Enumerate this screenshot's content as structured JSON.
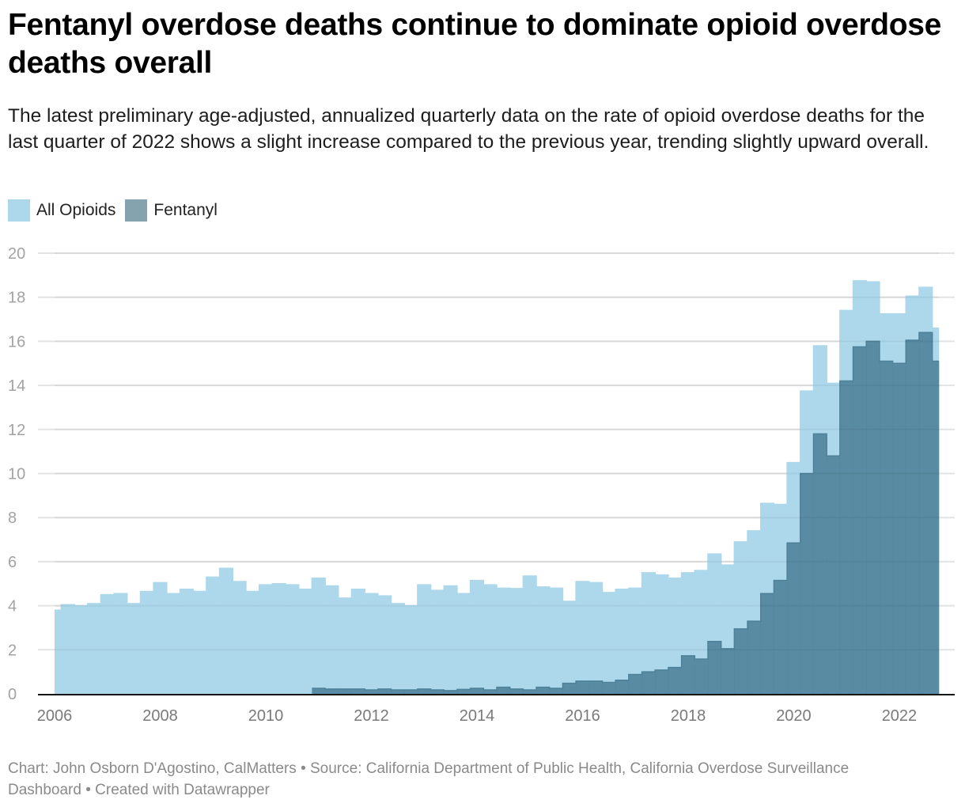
{
  "header": {
    "title": "Fentanyl overdose deaths continue to dominate opioid overdose deaths overall",
    "subtitle": "The latest preliminary age-adjusted, annualized quarterly data on the rate of opioid overdose deaths for the last quarter of 2022 shows a slight increase compared to the previous year, trending slightly upward overall."
  },
  "legend": [
    {
      "label": "All Opioids",
      "color": "#add8eb"
    },
    {
      "label": "Fentanyl",
      "color": "#85a3ae"
    }
  ],
  "footer": {
    "text": "Chart: John Osborn D'Agostino, CalMatters • Source: California Department of Public Health, California Overdose Surveillance Dashboard • Created with Datawrapper"
  },
  "chart_data": {
    "type": "area",
    "title": "Fentanyl overdose deaths continue to dominate opioid overdose deaths overall",
    "xlabel": "",
    "ylabel": "",
    "x_start": 2006.0,
    "x_step": 0.25,
    "x_count": 68,
    "xlim": [
      2006,
      2022.75
    ],
    "ylim": [
      0,
      20
    ],
    "x_ticks": [
      "2006",
      "2008",
      "2010",
      "2012",
      "2014",
      "2016",
      "2018",
      "2020",
      "2022"
    ],
    "x_tick_values": [
      2006,
      2008,
      2010,
      2012,
      2014,
      2016,
      2018,
      2020,
      2022
    ],
    "y_ticks": [
      0,
      2,
      4,
      6,
      8,
      10,
      12,
      14,
      16,
      18,
      20
    ],
    "grid": true,
    "legend_position": "top-left",
    "step": "center",
    "series": [
      {
        "name": "All Opioids",
        "color": "#add8eb",
        "start_index": 0,
        "values": [
          3.8,
          4.05,
          4.0,
          4.1,
          4.5,
          4.55,
          4.1,
          4.65,
          5.05,
          4.55,
          4.75,
          4.65,
          5.3,
          5.7,
          5.1,
          4.65,
          4.95,
          5.0,
          4.95,
          4.75,
          5.25,
          4.9,
          4.35,
          4.75,
          4.55,
          4.45,
          4.1,
          4.0,
          4.95,
          4.7,
          4.9,
          4.55,
          5.15,
          4.95,
          4.8,
          4.78,
          5.35,
          4.85,
          4.8,
          4.2,
          5.1,
          5.05,
          4.6,
          4.75,
          4.8,
          5.5,
          5.4,
          5.25,
          5.5,
          5.6,
          6.35,
          5.85,
          6.9,
          7.4,
          8.65,
          8.6,
          10.5,
          13.75,
          15.8,
          14.1,
          17.4,
          18.75,
          18.7,
          17.25,
          17.25,
          18.05,
          18.45,
          16.6
        ]
      },
      {
        "name": "Fentanyl",
        "color": "#5a8ca3",
        "start_index": 20,
        "values": [
          0.25,
          0.22,
          0.22,
          0.22,
          0.18,
          0.22,
          0.18,
          0.18,
          0.22,
          0.18,
          0.15,
          0.2,
          0.25,
          0.18,
          0.3,
          0.22,
          0.18,
          0.3,
          0.25,
          0.48,
          0.58,
          0.58,
          0.52,
          0.62,
          0.88,
          1.0,
          1.08,
          1.2,
          1.73,
          1.58,
          2.38,
          2.05,
          2.95,
          3.3,
          4.55,
          5.15,
          6.85,
          10.0,
          11.8,
          10.8,
          14.2,
          15.75,
          16.0,
          15.1,
          15.0,
          16.05,
          16.4,
          15.1
        ]
      }
    ]
  }
}
